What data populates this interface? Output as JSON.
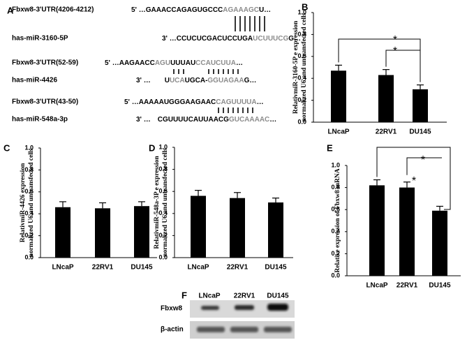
{
  "panel_labels": [
    "A",
    "B",
    "C",
    "D",
    "E",
    "F"
  ],
  "alignments": [
    {
      "label": "Fbxw8-3'UTR(4206-4212)",
      "parts": [
        [
          "5' …GAAACCAGAGUGCCC",
          "#000000"
        ],
        [
          "AGAAAGC",
          "#8c8c8c"
        ],
        [
          "U…",
          "#000000"
        ]
      ]
    },
    {
      "label": "has-miR-3160-5P",
      "parts": [
        [
          "3' …CCUCUCGACUCCUGA",
          "#000000"
        ],
        [
          "UCUUUCG",
          "#8c8c8c"
        ],
        [
          "G…",
          "#000000"
        ]
      ]
    },
    {
      "label": "Fbxw8-3'UTR(52-59)",
      "parts": [
        [
          "5' …AAGAACC",
          "#000000"
        ],
        [
          "AGU",
          "#8c8c8c"
        ],
        [
          "UUUAU",
          "#000000"
        ],
        [
          "CCAUCUUA",
          "#8c8c8c"
        ],
        [
          "…",
          "#000000"
        ]
      ]
    },
    {
      "label": "has-miR-4426",
      "parts": [
        [
          "3' …",
          "#000000"
        ],
        [
          "U",
          "#000000"
        ],
        [
          "UCA",
          "#8c8c8c"
        ],
        [
          "UGCA-",
          "#000000"
        ],
        [
          "GGUAGAA",
          "#8c8c8c"
        ],
        [
          "G…",
          "#000000"
        ]
      ]
    },
    {
      "label": "Fbxw8-3'UTR(43-50)",
      "parts": [
        [
          "5' …AAAAAUGGGAAGAAC",
          "#000000"
        ],
        [
          "CAGUUUUA",
          "#8c8c8c"
        ],
        [
          "…",
          "#000000"
        ]
      ]
    },
    {
      "label": "has-miR-548a-3p",
      "parts": [
        [
          "3' …",
          "#000000"
        ],
        [
          "CGUUUUCAUUAACG",
          "#000000"
        ],
        [
          "GUCAAAAC",
          "#8c8c8c"
        ],
        [
          "…",
          "#000000"
        ]
      ]
    }
  ],
  "chart_data": [
    {
      "type": "bar",
      "ylabel": [
        "RelativmiR-3160-5P e expression",
        "normalized U6 and untransfected cells"
      ],
      "categories": [
        "LNcaP",
        "22RV1",
        "DU145"
      ],
      "values": [
        0.47,
        0.43,
        0.3
      ],
      "errors": [
        0.05,
        0.05,
        0.04
      ],
      "color": "#000000",
      "ylim": [
        0,
        1
      ],
      "yticks": [
        {
          "value": 0,
          "label": "0.0"
        },
        0.2,
        0.4,
        0.6,
        0.8,
        {
          "value": 1,
          "label": "1.0"
        }
      ],
      "annotations": [
        "*",
        "*"
      ]
    },
    {
      "type": "bar",
      "ylabel": [
        "RelativmiR-4426 expression",
        "normalized U6 and untransfected cells"
      ],
      "categories": [
        "LNcaP",
        "22RV1",
        "DU145"
      ],
      "values": [
        0.46,
        0.45,
        0.47
      ],
      "errors": [
        0.05,
        0.05,
        0.04
      ],
      "color": "#000000",
      "ylim": [
        0,
        1
      ],
      "yticks": [
        {
          "value": 0,
          "label": "0.0"
        },
        0.2,
        0.4,
        0.6,
        0.8,
        {
          "value": 1,
          "label": "1.0"
        }
      ]
    },
    {
      "type": "bar",
      "ylabel": [
        "RelativmiR-548a-3P e expression",
        "normalized U6 and untransfected cells"
      ],
      "categories": [
        "LNcaP",
        "22RV1",
        "DU145"
      ],
      "values": [
        0.56,
        0.54,
        0.5
      ],
      "errors": [
        0.05,
        0.05,
        0.04
      ],
      "color": "#000000",
      "ylim": [
        0,
        1
      ],
      "yticks": [
        {
          "value": 0,
          "label": "0.0"
        },
        0.2,
        0.4,
        0.6,
        0.8,
        {
          "value": 1,
          "label": "1.0"
        }
      ]
    },
    {
      "type": "bar",
      "ylabel": [
        "Relative expression of Fbxw8 mRNA"
      ],
      "categories": [
        "LNcaP",
        "22RV1",
        "DU145"
      ],
      "values": [
        0.82,
        0.8,
        0.59
      ],
      "errors": [
        0.05,
        0.05,
        0.04
      ],
      "color": "#000000",
      "ylim": [
        0,
        1
      ],
      "yticks": [
        {
          "value": 0,
          "label": "0.0"
        },
        0.2,
        0.4,
        0.6,
        0.8,
        {
          "value": 1,
          "label": "1.0"
        }
      ],
      "annotations": [
        "*",
        "*"
      ]
    }
  ],
  "blot": {
    "lanes": [
      "LNcaP",
      "22RV1",
      "DU145"
    ],
    "rows": [
      "Fbxw8",
      "β-actin"
    ]
  }
}
